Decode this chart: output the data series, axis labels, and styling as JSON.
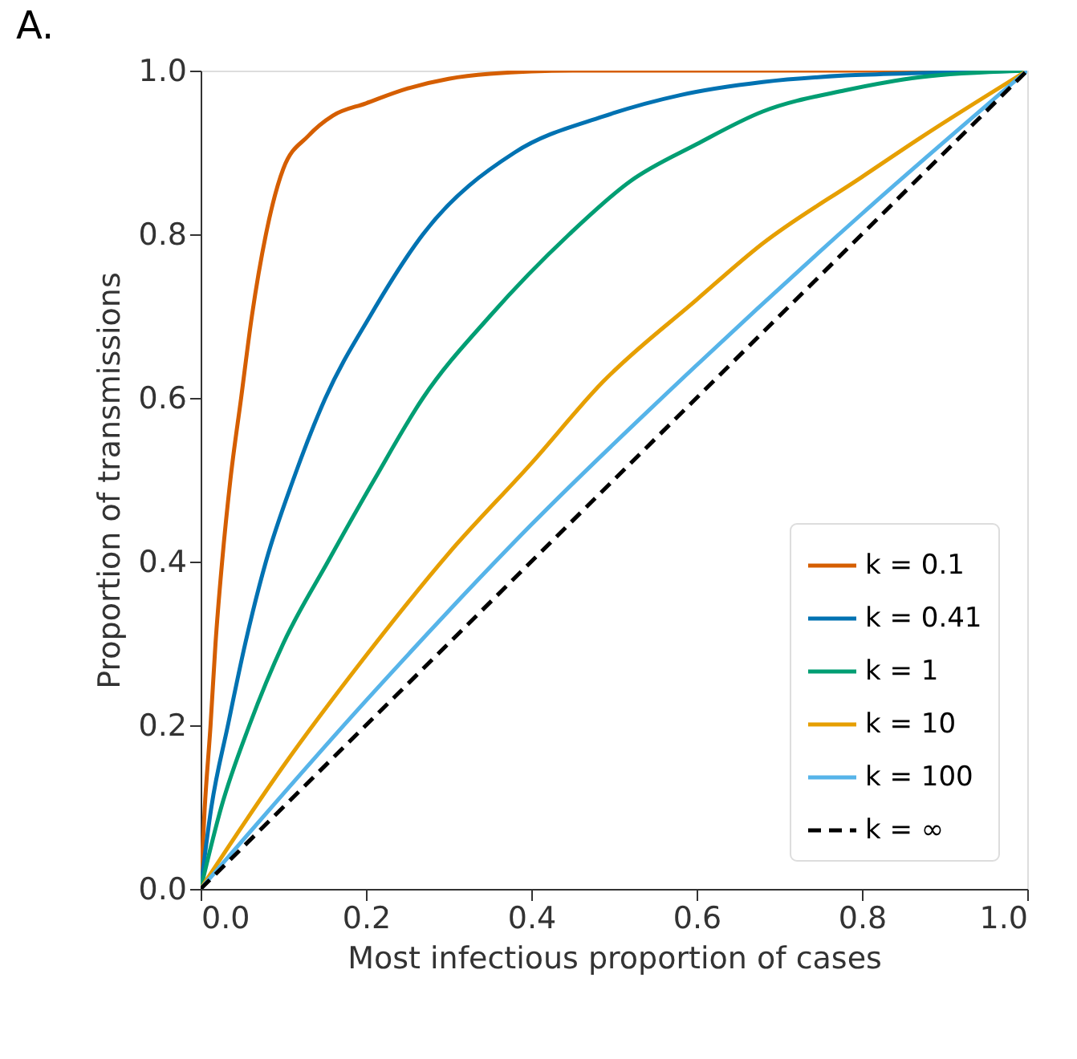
{
  "chart_data": {
    "type": "line",
    "title": "A.",
    "xlabel": "Most infectious proportion of cases",
    "ylabel": "Proportion of transmissions",
    "xlim": [
      0,
      1
    ],
    "ylim": [
      0,
      1
    ],
    "xticks": [
      {
        "value": 0,
        "label": "0.0"
      },
      0.2,
      0.4,
      0.6,
      0.8,
      {
        "value": 1,
        "label": "1.0"
      }
    ],
    "yticks": [
      {
        "value": 0,
        "label": "0.0"
      },
      0.2,
      0.4,
      0.6,
      0.8,
      {
        "value": 1,
        "label": "1.0"
      }
    ],
    "grid": false,
    "legend": "bottom right",
    "marker": "none",
    "line_style": "solid",
    "series": [
      {
        "name": "k = 0.1",
        "color": "#d55e00",
        "x": [
          0,
          0.005,
          0.012,
          0.018,
          0.026,
          0.036,
          0.049,
          0.062,
          0.079,
          0.1,
          0.13,
          0.16,
          0.2,
          0.25,
          0.3,
          0.35,
          0.45,
          1
        ],
        "values": [
          0,
          0.1,
          0.2,
          0.3,
          0.4,
          0.5,
          0.6,
          0.7,
          0.8,
          0.88,
          0.92,
          0.945,
          0.96,
          0.978,
          0.99,
          0.996,
          1,
          1
        ]
      },
      {
        "name": "k = 0.41",
        "color": "#0072b2",
        "x": [
          0,
          0.013,
          0.033,
          0.054,
          0.079,
          0.112,
          0.151,
          0.205,
          0.269,
          0.38,
          0.487,
          0.58,
          0.68,
          0.78,
          0.87,
          1
        ],
        "values": [
          0,
          0.1,
          0.2,
          0.3,
          0.4,
          0.5,
          0.6,
          0.7,
          0.8,
          0.9,
          0.944,
          0.97,
          0.986,
          0.994,
          0.997,
          1
        ]
      },
      {
        "name": "k = 1",
        "color": "#009e73",
        "x": [
          0,
          0.025,
          0.059,
          0.1,
          0.154,
          0.21,
          0.269,
          0.35,
          0.446,
          0.52,
          0.6,
          0.68,
          0.78,
          0.87,
          1
        ],
        "values": [
          0,
          0.1,
          0.2,
          0.3,
          0.4,
          0.5,
          0.6,
          0.7,
          0.8,
          0.865,
          0.91,
          0.95,
          0.976,
          0.992,
          1
        ]
      },
      {
        "name": "k = 10",
        "color": "#e69f00",
        "x": [
          0,
          0.1,
          0.2,
          0.3,
          0.4,
          0.487,
          0.6,
          0.679,
          0.8,
          0.871,
          1
        ],
        "values": [
          0,
          0.15,
          0.285,
          0.41,
          0.52,
          0.62,
          0.72,
          0.788,
          0.87,
          0.918,
          1
        ]
      },
      {
        "name": "k = 100",
        "color": "#56b4e9",
        "x": [
          0,
          0.2,
          0.4,
          0.6,
          0.8,
          1
        ],
        "values": [
          0,
          0.23,
          0.445,
          0.64,
          0.825,
          1
        ]
      },
      {
        "name": "k = ∞",
        "color": "#000000",
        "line_style": "dashed",
        "x": [
          0,
          1
        ],
        "values": [
          0,
          1
        ]
      }
    ]
  }
}
